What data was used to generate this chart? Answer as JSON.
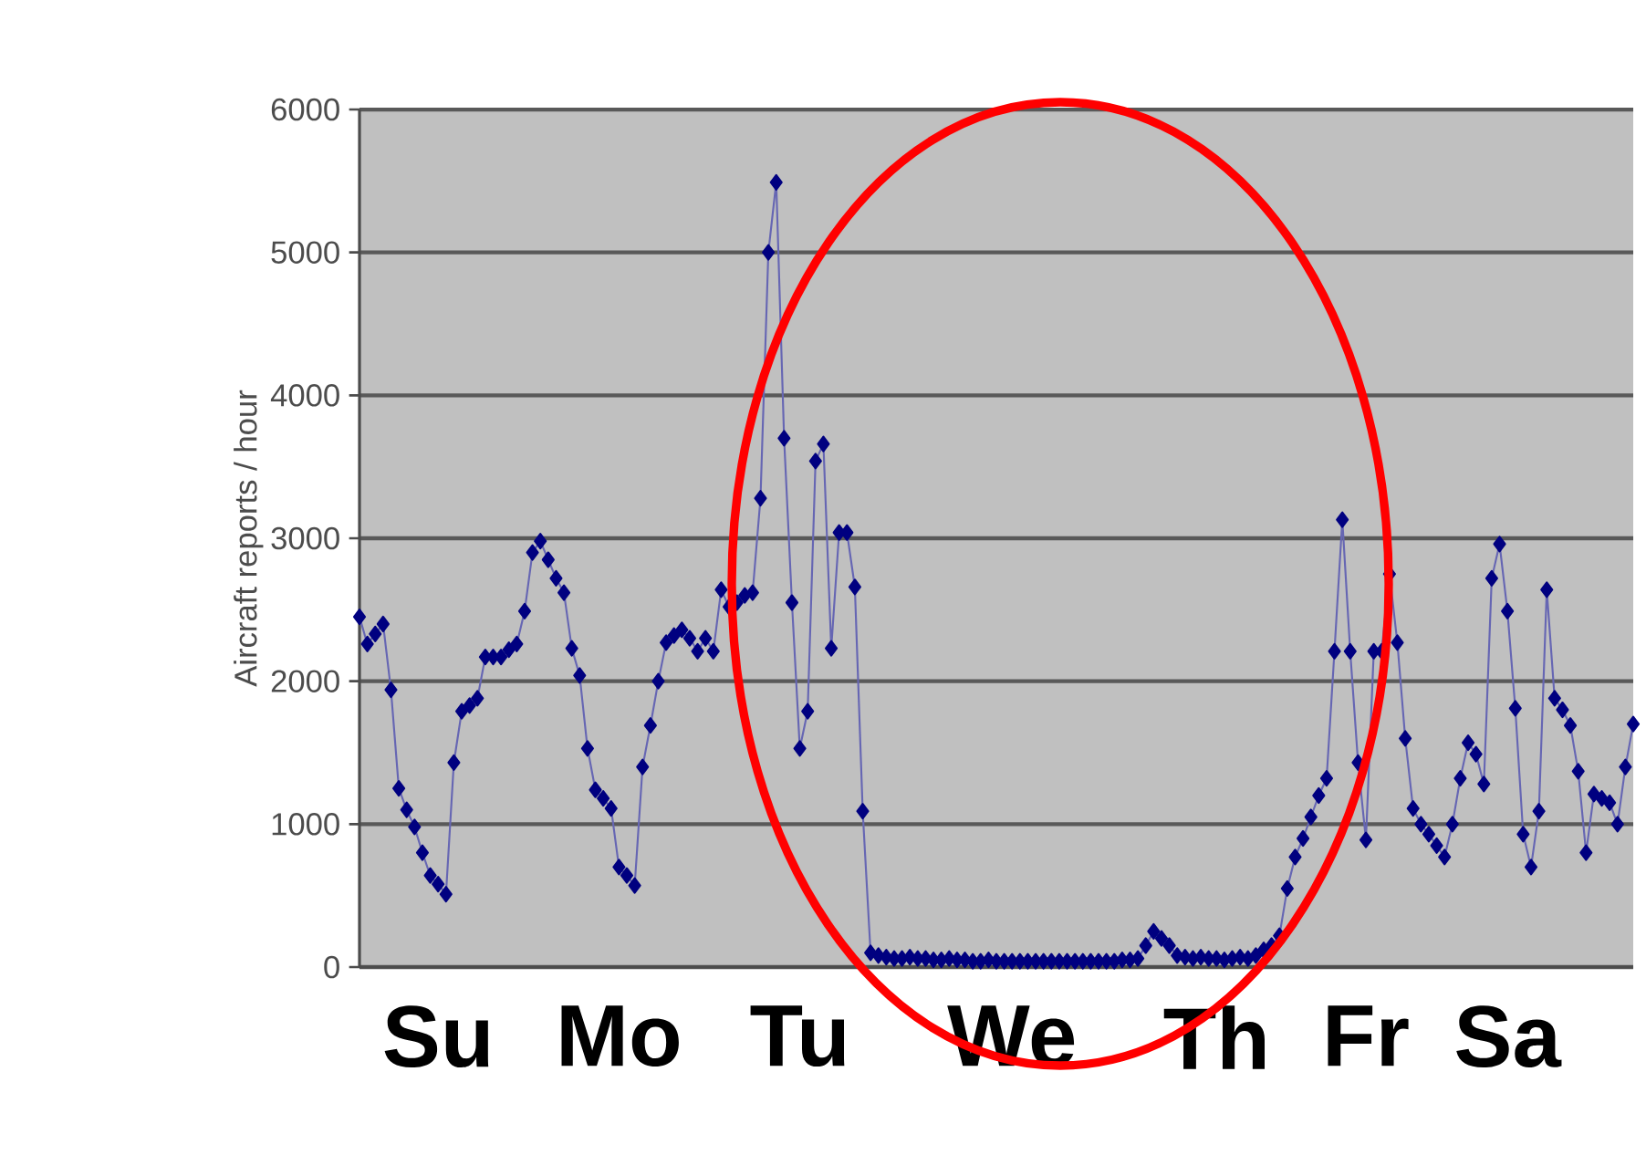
{
  "chart_data": {
    "type": "line",
    "ylabel": "Aircraft reports / hour",
    "categories": [
      null,
      null,
      null,
      null,
      null,
      null,
      null,
      null,
      null,
      null,
      "Su",
      null,
      null,
      null,
      null,
      null,
      null,
      null,
      null,
      null,
      null,
      null,
      null,
      null,
      null,
      null,
      null,
      null,
      null,
      null,
      null,
      null,
      null,
      "Mo",
      null,
      null,
      null,
      null,
      null,
      null,
      null,
      null,
      null,
      null,
      null,
      null,
      null,
      null,
      null,
      null,
      null,
      null,
      null,
      null,
      null,
      null,
      "Tu",
      null,
      null,
      null,
      null,
      null,
      null,
      null,
      null,
      null,
      null,
      null,
      null,
      null,
      null,
      null,
      null,
      null,
      null,
      null,
      null,
      null,
      null,
      null,
      null,
      null,
      null,
      "We",
      null,
      null,
      null,
      null,
      null,
      null,
      null,
      null,
      null,
      null,
      null,
      null,
      null,
      null,
      null,
      null,
      null,
      null,
      null,
      null,
      null,
      null,
      null,
      null,
      null,
      "Th",
      null,
      null,
      null,
      null,
      null,
      null,
      null,
      null,
      null,
      null,
      null,
      null,
      null,
      null,
      null,
      null,
      null,
      null,
      "Fr",
      null,
      null,
      null,
      null,
      null,
      null,
      null,
      null,
      null,
      null,
      null,
      null,
      null,
      null,
      null,
      null,
      null,
      "Sa",
      null,
      null,
      null,
      null,
      null,
      null,
      null,
      null,
      null,
      null,
      null,
      null,
      null,
      null,
      null,
      null
    ],
    "series": [
      {
        "color": "#000080",
        "values": [
          2450,
          2260,
          2330,
          2400,
          1940,
          1250,
          1100,
          980,
          800,
          640,
          580,
          510,
          1430,
          1790,
          1830,
          1880,
          2170,
          2170,
          2170,
          2220,
          2260,
          2490,
          2900,
          2980,
          2850,
          2720,
          2620,
          2230,
          2040,
          1530,
          1240,
          1180,
          1110,
          700,
          640,
          570,
          1400,
          1690,
          2000,
          2270,
          2320,
          2360,
          2300,
          2210,
          2300,
          2210,
          2640,
          2520,
          2550,
          2600,
          2620,
          3280,
          5000,
          5490,
          3700,
          2550,
          1530,
          1790,
          3540,
          3660,
          2230,
          3040,
          3040,
          2660,
          1090,
          100,
          80,
          70,
          60,
          60,
          70,
          60,
          60,
          50,
          50,
          60,
          50,
          50,
          40,
          40,
          50,
          40,
          40,
          40,
          40,
          40,
          40,
          40,
          40,
          40,
          40,
          40,
          40,
          40,
          40,
          40,
          40,
          50,
          50,
          60,
          150,
          250,
          200,
          150,
          80,
          70,
          60,
          70,
          60,
          60,
          50,
          60,
          70,
          60,
          80,
          120,
          150,
          220,
          550,
          770,
          900,
          1050,
          1200,
          1320,
          2210,
          3130,
          2210,
          1430,
          890,
          2210,
          2210,
          2750,
          2270,
          1600,
          1110,
          1000,
          930,
          850,
          770,
          1000,
          1320,
          1570,
          1490,
          1280,
          2720,
          2960,
          2490,
          1810,
          930,
          700,
          1090,
          2640,
          1880,
          1800,
          1690,
          1370,
          800,
          1210,
          1180,
          1150,
          1000,
          1400,
          1700
        ]
      }
    ],
    "ylim": [
      0,
      6000
    ],
    "yticks": [
      0,
      1000,
      2000,
      3000,
      4000,
      5000,
      6000
    ],
    "grid": "y",
    "marker": "diamond",
    "line_style": "solid"
  }
}
